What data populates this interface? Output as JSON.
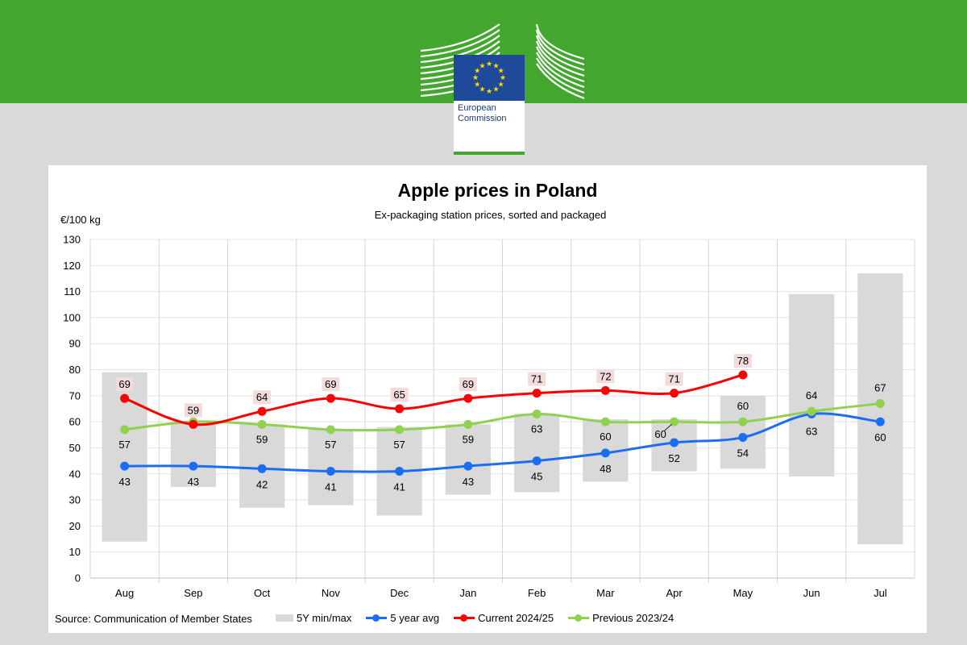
{
  "header": {
    "logo_line1": "European",
    "logo_line2": "Commission",
    "colors": {
      "band": "#43a62f",
      "flag": "#1f4a9a",
      "stars": "#ffdd00"
    }
  },
  "chart_data": {
    "type": "line",
    "title": "Apple prices in Poland",
    "subtitle": "Ex-packaging station prices, sorted and packaged",
    "ylabel": "€/100 kg",
    "ylim": [
      0,
      130
    ],
    "yticks": [
      0,
      10,
      20,
      30,
      40,
      50,
      60,
      70,
      80,
      90,
      100,
      110,
      120,
      130
    ],
    "grid": true,
    "categories": [
      "Aug",
      "Sep",
      "Oct",
      "Nov",
      "Dec",
      "Jan",
      "Feb",
      "Mar",
      "Apr",
      "May",
      "Jun",
      "Jul"
    ],
    "range": {
      "name": "5Y min/max",
      "color": "#d9d9d9",
      "min": [
        14,
        35,
        27,
        28,
        24,
        32,
        33,
        37,
        41,
        42,
        39,
        13
      ],
      "max": [
        79,
        60,
        59,
        57,
        58,
        59,
        63,
        61,
        61,
        70,
        109,
        117
      ]
    },
    "series": [
      {
        "name": "5 year avg",
        "color": "#1b6ef3",
        "values": [
          43,
          43,
          42,
          41,
          41,
          43,
          45,
          48,
          52,
          54,
          63,
          60
        ],
        "labels": [
          "43",
          "43",
          "42",
          "41",
          "41",
          "43",
          "45",
          "48",
          "52",
          "54",
          "63",
          "60"
        ]
      },
      {
        "name": "Current 2024/25",
        "color": "#ff0000",
        "values": [
          69,
          59,
          64,
          69,
          65,
          69,
          71,
          72,
          71,
          78,
          null,
          null
        ],
        "labels": [
          "69",
          "59",
          "64",
          "69",
          "65",
          "69",
          "71",
          "72",
          "71",
          "78",
          null,
          null
        ]
      },
      {
        "name": "Previous 2023/24",
        "color": "#92d050",
        "values": [
          57,
          60,
          59,
          57,
          57,
          59,
          63,
          60,
          60,
          60,
          64,
          67
        ],
        "labels": [
          "57",
          "",
          "59",
          "57",
          "57",
          "59",
          "63",
          "60",
          "60",
          "60",
          "64",
          "67"
        ]
      }
    ],
    "source": "Source: Communication  of Member States",
    "legend_position": "bottom"
  }
}
